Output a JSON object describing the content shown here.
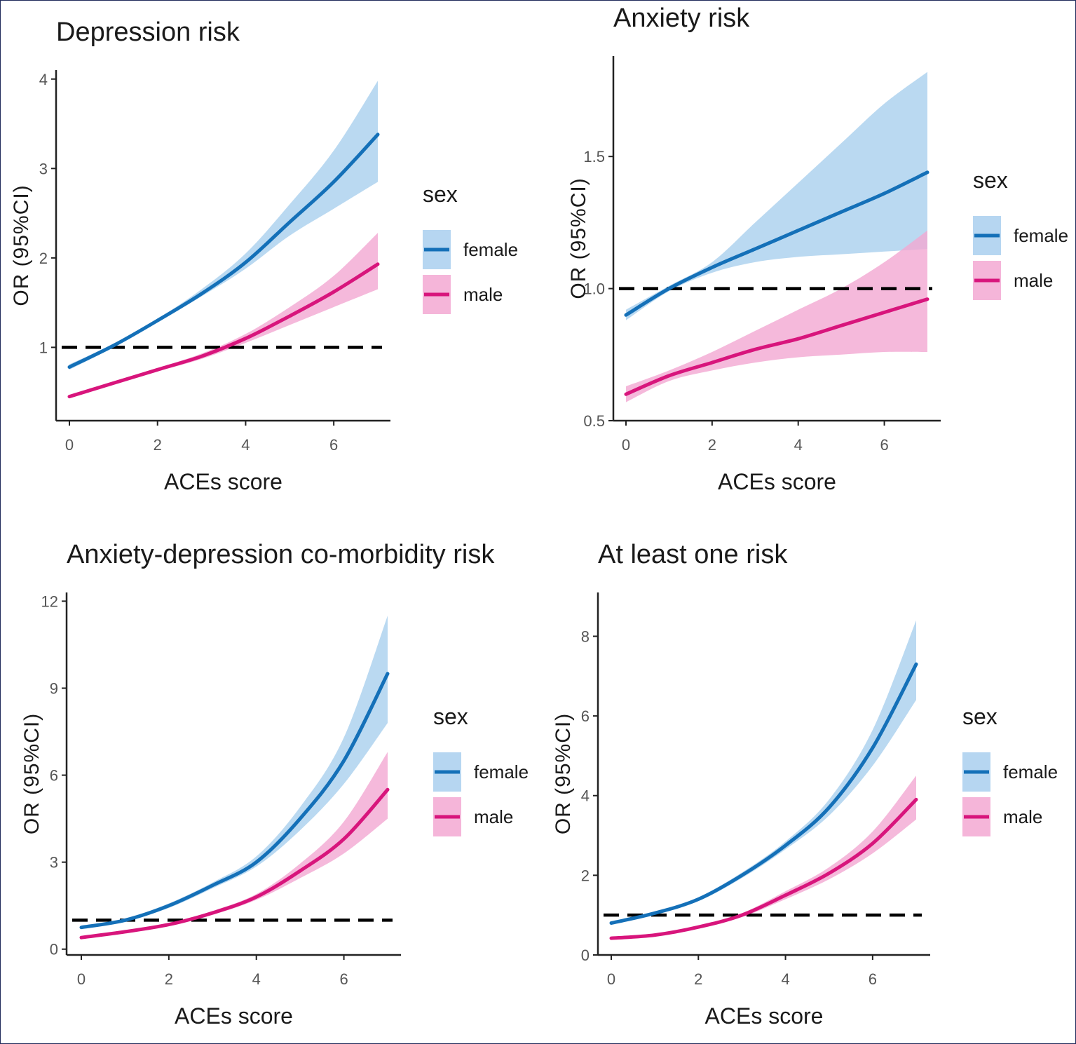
{
  "figure": {
    "legend_title": "sex",
    "colors": {
      "female": "#1470b8",
      "male": "#d8157c",
      "female_band": "#a9cfee",
      "male_band": "#f3a8d2"
    }
  },
  "chart_data": [
    {
      "type": "line",
      "title": "Depression risk",
      "xlabel": "ACEs score",
      "ylabel": "OR (95%CI)",
      "xlim": [
        -0.3,
        7.3
      ],
      "ylim": [
        0.18,
        4.1
      ],
      "xticks": [
        0,
        2,
        4,
        6
      ],
      "yticks": [
        1,
        2,
        3,
        4
      ],
      "xtick_labels": [
        "0",
        "2",
        "4",
        "6"
      ],
      "ytick_labels": [
        "1",
        "2",
        "3",
        "4"
      ],
      "reference_line": 1.0,
      "legend": [
        "female",
        "male"
      ],
      "x": [
        0,
        1,
        2,
        3,
        4,
        5,
        6,
        7
      ],
      "series": [
        {
          "name": "female",
          "values": [
            0.78,
            1.02,
            1.3,
            1.6,
            1.95,
            2.4,
            2.85,
            3.38
          ],
          "lower": [
            0.75,
            1.0,
            1.28,
            1.57,
            1.88,
            2.25,
            2.55,
            2.85
          ],
          "upper": [
            0.81,
            1.04,
            1.32,
            1.65,
            2.05,
            2.6,
            3.2,
            3.98
          ]
        },
        {
          "name": "male",
          "values": [
            0.45,
            0.6,
            0.75,
            0.9,
            1.1,
            1.35,
            1.62,
            1.93
          ],
          "lower": [
            0.43,
            0.58,
            0.73,
            0.87,
            1.05,
            1.25,
            1.45,
            1.65
          ],
          "upper": [
            0.47,
            0.62,
            0.77,
            0.93,
            1.15,
            1.45,
            1.8,
            2.28
          ]
        }
      ]
    },
    {
      "type": "line",
      "title": "Anxiety risk",
      "xlabel": "ACEs score",
      "ylabel": "OR (95%CI)",
      "xlim": [
        -0.3,
        7.3
      ],
      "ylim": [
        0.5,
        1.88
      ],
      "xticks": [
        0,
        2,
        4,
        6
      ],
      "yticks": [
        0.5,
        1.0,
        1.5
      ],
      "xtick_labels": [
        "0",
        "2",
        "4",
        "6"
      ],
      "ytick_labels": [
        "0.5",
        "1.0",
        "1.5"
      ],
      "reference_line": 1.0,
      "legend": [
        "female",
        "male"
      ],
      "x": [
        0,
        1,
        2,
        3,
        4,
        5,
        6,
        7
      ],
      "series": [
        {
          "name": "female",
          "values": [
            0.9,
            1.0,
            1.08,
            1.15,
            1.22,
            1.29,
            1.36,
            1.44
          ],
          "lower": [
            0.88,
            0.99,
            1.06,
            1.1,
            1.12,
            1.13,
            1.14,
            1.15
          ],
          "upper": [
            0.92,
            1.01,
            1.1,
            1.25,
            1.4,
            1.55,
            1.7,
            1.82
          ]
        },
        {
          "name": "male",
          "values": [
            0.6,
            0.67,
            0.72,
            0.77,
            0.81,
            0.86,
            0.91,
            0.96
          ],
          "lower": [
            0.57,
            0.65,
            0.69,
            0.72,
            0.74,
            0.75,
            0.76,
            0.76
          ],
          "upper": [
            0.63,
            0.69,
            0.76,
            0.84,
            0.92,
            1.0,
            1.1,
            1.22
          ]
        }
      ]
    },
    {
      "type": "line",
      "title": "Anxiety-depression co-morbidity risk",
      "xlabel": "ACEs score",
      "ylabel": "OR (95%CI)",
      "xlim": [
        -0.3,
        7.3
      ],
      "ylim": [
        -0.2,
        12.3
      ],
      "xticks": [
        0,
        2,
        4,
        6
      ],
      "yticks": [
        0,
        3,
        6,
        9,
        12
      ],
      "xtick_labels": [
        "0",
        "2",
        "4",
        "6"
      ],
      "ytick_labels": [
        "0",
        "3",
        "6",
        "9",
        "12"
      ],
      "reference_line": 1.0,
      "legend": [
        "female",
        "male"
      ],
      "x": [
        0,
        1,
        2,
        3,
        4,
        5,
        6,
        7
      ],
      "series": [
        {
          "name": "female",
          "values": [
            0.75,
            1.0,
            1.5,
            2.2,
            3.0,
            4.5,
            6.5,
            9.5
          ],
          "lower": [
            0.7,
            0.95,
            1.42,
            2.1,
            2.85,
            4.1,
            5.7,
            7.8
          ],
          "upper": [
            0.8,
            1.05,
            1.58,
            2.3,
            3.2,
            4.9,
            7.3,
            11.5
          ]
        },
        {
          "name": "male",
          "values": [
            0.4,
            0.6,
            0.85,
            1.25,
            1.8,
            2.7,
            3.8,
            5.5
          ],
          "lower": [
            0.37,
            0.55,
            0.8,
            1.18,
            1.7,
            2.45,
            3.3,
            4.5
          ],
          "upper": [
            0.43,
            0.65,
            0.9,
            1.32,
            1.9,
            2.95,
            4.4,
            6.8
          ]
        }
      ]
    },
    {
      "type": "line",
      "title": "At least one risk",
      "xlabel": "ACEs score",
      "ylabel": "OR (95%CI)",
      "xlim": [
        -0.3,
        7.3
      ],
      "ylim": [
        0,
        9.1
      ],
      "xticks": [
        0,
        2,
        4,
        6
      ],
      "yticks": [
        0,
        2,
        4,
        6,
        8
      ],
      "xtick_labels": [
        "0",
        "2",
        "4",
        "6"
      ],
      "ytick_labels": [
        "0",
        "2",
        "4",
        "6",
        "8"
      ],
      "reference_line": 1.0,
      "legend": [
        "female",
        "male"
      ],
      "x": [
        0,
        1,
        2,
        3,
        4,
        5,
        6,
        7
      ],
      "series": [
        {
          "name": "female",
          "values": [
            0.8,
            1.05,
            1.4,
            2.0,
            2.75,
            3.7,
            5.2,
            7.3
          ],
          "lower": [
            0.77,
            1.01,
            1.35,
            1.93,
            2.65,
            3.5,
            4.75,
            6.4
          ],
          "upper": [
            0.83,
            1.09,
            1.45,
            2.07,
            2.85,
            3.9,
            5.65,
            8.4
          ]
        },
        {
          "name": "male",
          "values": [
            0.42,
            0.5,
            0.7,
            1.0,
            1.5,
            2.05,
            2.8,
            3.9
          ],
          "lower": [
            0.4,
            0.48,
            0.66,
            0.95,
            1.4,
            1.9,
            2.55,
            3.4
          ],
          "upper": [
            0.44,
            0.52,
            0.74,
            1.05,
            1.6,
            2.2,
            3.1,
            4.5
          ]
        }
      ]
    }
  ]
}
